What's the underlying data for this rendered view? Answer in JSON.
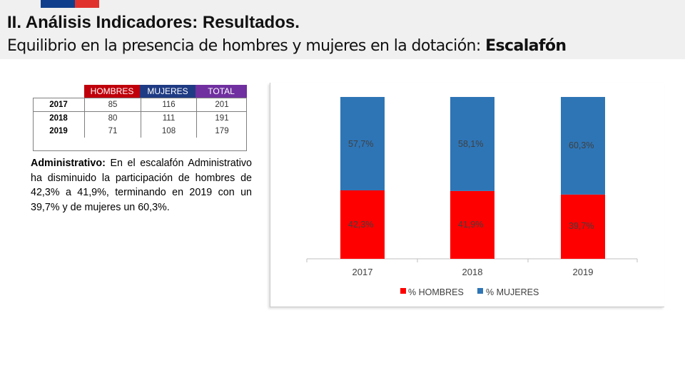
{
  "header": {
    "title": "II. Análisis Indicadores: Resultados.",
    "subtitle_prefix": "Equilibrio en la presencia de hombres y mujeres en la dotación:",
    "subtitle_bold": "Escalafón",
    "flag_colors": [
      "#0f3f8c",
      "#e1312c"
    ]
  },
  "table": {
    "headers": [
      "HOMBRES",
      "MUJERES",
      "TOTAL"
    ],
    "header_colors": [
      "#c0000b",
      "#1f3b84",
      "#7030a0"
    ],
    "rows": [
      {
        "year": "2017",
        "hombres": "85",
        "mujeres": "116",
        "total": "201"
      },
      {
        "year": "2018",
        "hombres": "80",
        "mujeres": "111",
        "total": "191"
      },
      {
        "year": "2019",
        "hombres": "71",
        "mujeres": "108",
        "total": "179"
      }
    ]
  },
  "paragraph": {
    "label": "Administrativo:",
    "text": "En el escalafón Administrativo ha disminuido la participación de hombres de 42,3% a 41,9%, terminando en 2019 con un 39,7% y de mujeres un 60,3%."
  },
  "chart_data": {
    "type": "bar",
    "stacked": true,
    "categories": [
      "2017",
      "2018",
      "2019"
    ],
    "series": [
      {
        "name": "% HOMBRES",
        "color": "#ff0000",
        "values": [
          42.3,
          41.9,
          39.7
        ],
        "labels": [
          "42,3%",
          "41,9%",
          "39,7%"
        ]
      },
      {
        "name": "% MUJERES",
        "color": "#2e75b6",
        "values": [
          57.7,
          58.1,
          60.3
        ],
        "labels": [
          "57,7%",
          "58,1%",
          "60,3%"
        ]
      }
    ],
    "ylim": [
      0,
      100
    ],
    "title": "",
    "xlabel": "",
    "ylabel": "",
    "legend": "bottom"
  }
}
